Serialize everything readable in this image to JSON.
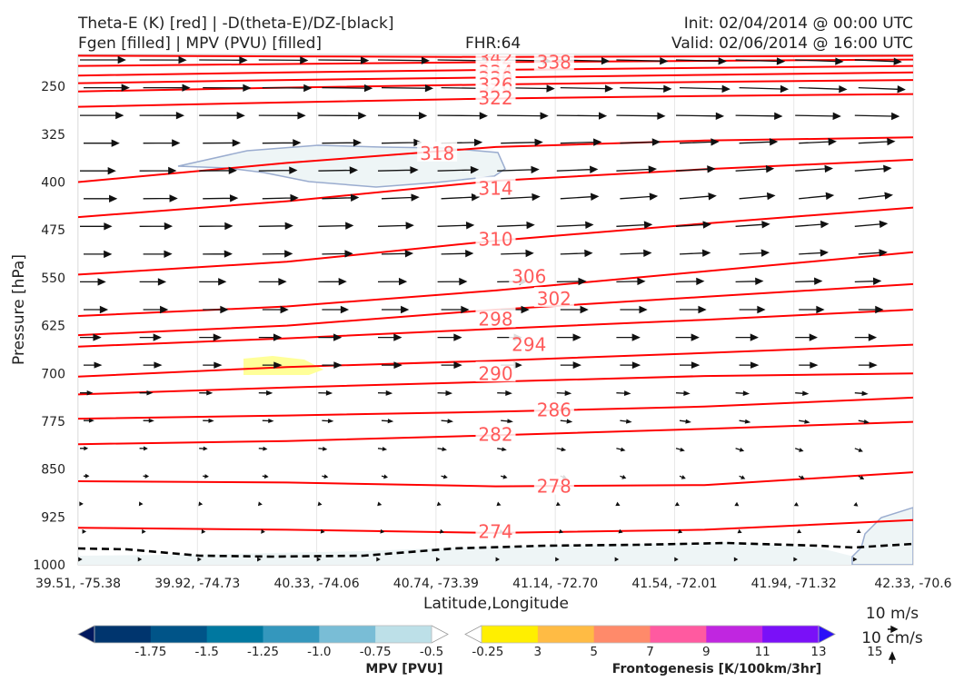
{
  "header": {
    "title_left_1": "Theta-E (K) [red] | -D(theta-E)/DZ-[black]",
    "title_left_2": "Fgen [filled] | MPV (PVU) [filled]",
    "fhr": "FHR:64",
    "init": "Init: 02/04/2014 @ 00:00 UTC",
    "valid": "Valid: 02/06/2014 @ 16:00 UTC"
  },
  "chart_data": {
    "type": "line",
    "title": "Theta-E (K) [red] | -D(theta-E)/DZ-[black]",
    "xlabel": "Latitude,Longitude",
    "ylabel": "Pressure [hPa]",
    "x_ticks": [
      "39.51, -75.38",
      "39.92, -74.73",
      "40.33, -74.06",
      "40.74, -73.39",
      "41.14, -72.70",
      "41.54, -72.01",
      "41.94, -71.32",
      "42.33, -70.6"
    ],
    "y_ticks": [
      250,
      325,
      400,
      475,
      550,
      625,
      700,
      775,
      850,
      925,
      1000
    ],
    "ylim": [
      1000,
      200
    ],
    "theta_e_series": [
      {
        "level": 342,
        "p": [
          202,
          203,
          204,
          203,
          202
        ]
      },
      {
        "level": 338,
        "p": [
          218,
          215,
          212,
          210,
          208
        ]
      },
      {
        "level": 334,
        "p": [
          233,
          228,
          224,
          221,
          218
        ]
      },
      {
        "level": 330,
        "p": [
          245,
          240,
          236,
          232,
          228
        ]
      },
      {
        "level": 326,
        "p": [
          258,
          252,
          247,
          243,
          240
        ]
      },
      {
        "level": 322,
        "p": [
          282,
          275,
          269,
          265,
          262
        ]
      },
      {
        "level": 318,
        "p": [
          400,
          370,
          345,
          335,
          330
        ]
      },
      {
        "level": 314,
        "p": [
          455,
          430,
          398,
          380,
          365
        ]
      },
      {
        "level": 310,
        "p": [
          545,
          525,
          492,
          465,
          440
        ]
      },
      {
        "level": 306,
        "p": [
          610,
          595,
          570,
          540,
          510
        ]
      },
      {
        "level": 302,
        "p": [
          640,
          625,
          600,
          580,
          560
        ]
      },
      {
        "level": 298,
        "p": [
          658,
          645,
          630,
          616,
          600
        ]
      },
      {
        "level": 294,
        "p": [
          705,
          690,
          680,
          668,
          655
        ]
      },
      {
        "level": 290,
        "p": [
          733,
          722,
          713,
          704,
          700
        ]
      },
      {
        "level": 286,
        "p": [
          771,
          766,
          760,
          752,
          738
        ]
      },
      {
        "level": 282,
        "p": [
          811,
          806,
          797,
          787,
          776
        ]
      },
      {
        "level": 278,
        "p": [
          869,
          871,
          877,
          875,
          855
        ]
      },
      {
        "level": 274,
        "p": [
          942,
          945,
          950,
          945,
          930
        ]
      }
    ],
    "label_positions": [
      {
        "text": "342",
        "x": 0.5,
        "p": 205
      },
      {
        "text": "338",
        "x": 0.57,
        "p": 212
      },
      {
        "text": "334",
        "x": 0.5,
        "p": 228
      },
      {
        "text": "330",
        "x": 0.5,
        "p": 238
      },
      {
        "text": "326",
        "x": 0.5,
        "p": 248
      },
      {
        "text": "322",
        "x": 0.5,
        "p": 268
      },
      {
        "text": "318",
        "x": 0.43,
        "p": 355
      },
      {
        "text": "314",
        "x": 0.5,
        "p": 410
      },
      {
        "text": "310",
        "x": 0.5,
        "p": 490
      },
      {
        "text": "306",
        "x": 0.54,
        "p": 548
      },
      {
        "text": "302",
        "x": 0.57,
        "p": 583
      },
      {
        "text": "298",
        "x": 0.5,
        "p": 615
      },
      {
        "text": "294",
        "x": 0.54,
        "p": 655
      },
      {
        "text": "290",
        "x": 0.5,
        "p": 700
      },
      {
        "text": "286",
        "x": 0.57,
        "p": 757
      },
      {
        "text": "282",
        "x": 0.5,
        "p": 796
      },
      {
        "text": "278",
        "x": 0.57,
        "p": 877
      },
      {
        "text": "274",
        "x": 0.5,
        "p": 948
      }
    ],
    "colors": {
      "theta_e": "#ff0000",
      "label": "#ff5a5a",
      "wind": "#111111",
      "mpv_fill": "#eef5f6",
      "mpv_edge": "#9aaccf",
      "fgen_fill": "#ffff99"
    }
  },
  "colorbars": {
    "mpv": {
      "name": "MPV [PVU]",
      "ticks": [
        "-1.75",
        "-1.5",
        "-1.25",
        "-1.0",
        "-0.75",
        "-0.5",
        "-0.25"
      ],
      "colors": [
        "#00185e",
        "#00356e",
        "#005488",
        "#0078a0",
        "#3497bd",
        "#79bdd6",
        "#bde0e8",
        "#ffffff"
      ]
    },
    "fgen": {
      "name": "Frontogenesis [K/100km/3hr]",
      "ticks": [
        "3",
        "5",
        "7",
        "9",
        "11",
        "13",
        "15"
      ],
      "colors": [
        "#ffffff",
        "#ffef00",
        "#ffbb44",
        "#ff8a6a",
        "#ff5aa0",
        "#c026e0",
        "#7a10f8",
        "#2a10f8"
      ]
    }
  },
  "wind_key": {
    "h_label": "10 m/s",
    "v_label": "10 cm/s"
  }
}
